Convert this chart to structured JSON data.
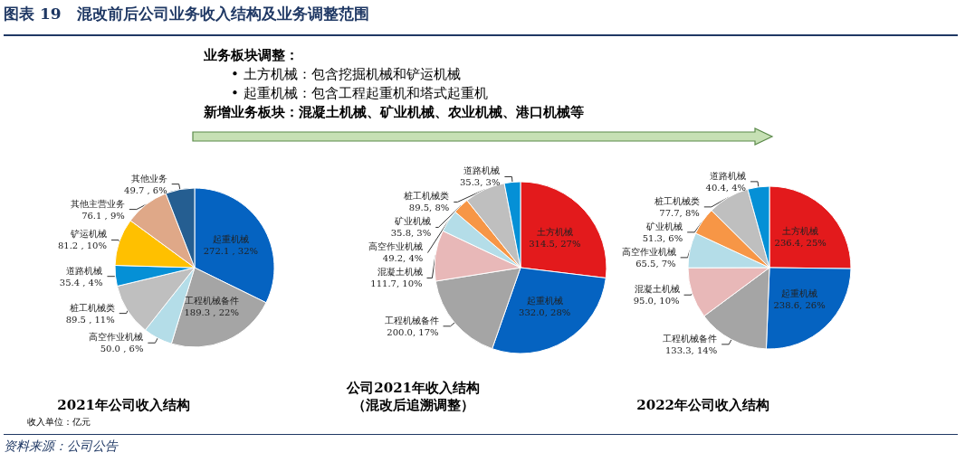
{
  "chart_data": [
    {
      "type": "other",
      "title": "图表 19   混改前后公司业务收入结构及业务调整范围",
      "annotations": [
        "业务板块调整：",
        "•   土方机械：包含挖掘机械和铲运机械",
        "•   起重机械：包含工程起重机和塔式起重机",
        "新增业务板块：混凝土机械、矿业机械、农业机械、港口机械等",
        "收入单位：亿元",
        "资料来源：公司公告"
      ]
    },
    {
      "type": "pie",
      "title": "2021年公司收入结构",
      "categories": [
        "起重机械",
        "工程机械备件",
        "高空作业机械",
        "桩工机械类",
        "道路机械",
        "铲运机械",
        "其他主营业务",
        "其他业务"
      ],
      "values": [
        272.1,
        189.3,
        50.0,
        89.5,
        35.4,
        81.2,
        76.1,
        49.7
      ],
      "value_labels": [
        "272.1 , 32%",
        "189.3 , 22%",
        "50.0 , 6%",
        "89.5 , 11%",
        "35.4 , 4%",
        "81.2 , 10%",
        "76.1 , 9%",
        "49.7 , 6%"
      ],
      "colors": [
        "#0563c1",
        "#a5a5a5",
        "#b4dde8",
        "#bfbfbf",
        "#0590d6",
        "#ffc000",
        "#dfa888",
        "#255e91"
      ]
    },
    {
      "type": "pie",
      "title": "公司2021年收入结构",
      "subtitle": "（混改后追溯调整）",
      "categories": [
        "土方机械",
        "起重机械",
        "工程机械备件",
        "混凝土机械",
        "高空作业机械",
        "矿业机械",
        "桩工机械类",
        "道路机械"
      ],
      "values": [
        314.5,
        332.0,
        200.0,
        111.7,
        49.2,
        35.8,
        89.5,
        35.3
      ],
      "value_labels": [
        "314.5, 27%",
        "332.0, 28%",
        "200.0, 17%",
        "111.7, 10%",
        "49.2, 4%",
        "35.8, 3%",
        "89.5, 8%",
        "35.3, 3%"
      ],
      "colors": [
        "#e31a1c",
        "#0563c1",
        "#a5a5a5",
        "#e8b8b8",
        "#b4dde8",
        "#f79646",
        "#bfbfbf",
        "#0590d6"
      ]
    },
    {
      "type": "pie",
      "title": "2022年公司收入结构",
      "categories": [
        "土方机械",
        "起重机械",
        "工程机械备件",
        "混凝土机械",
        "高空作业机械",
        "矿业机械",
        "桩工机械类",
        "道路机械"
      ],
      "values": [
        236.4,
        238.6,
        133.3,
        95.0,
        65.5,
        51.3,
        77.7,
        40.4
      ],
      "value_labels": [
        "236.4, 25%",
        "238.6, 26%",
        "133.3, 14%",
        "95.0, 10%",
        "65.5, 7%",
        "51.3, 6%",
        "77.7, 8%",
        "40.4, 4%"
      ],
      "colors": [
        "#e31a1c",
        "#0563c1",
        "#a5a5a5",
        "#e8b8b8",
        "#b4dde8",
        "#f79646",
        "#bfbfbf",
        "#0590d6"
      ]
    }
  ]
}
